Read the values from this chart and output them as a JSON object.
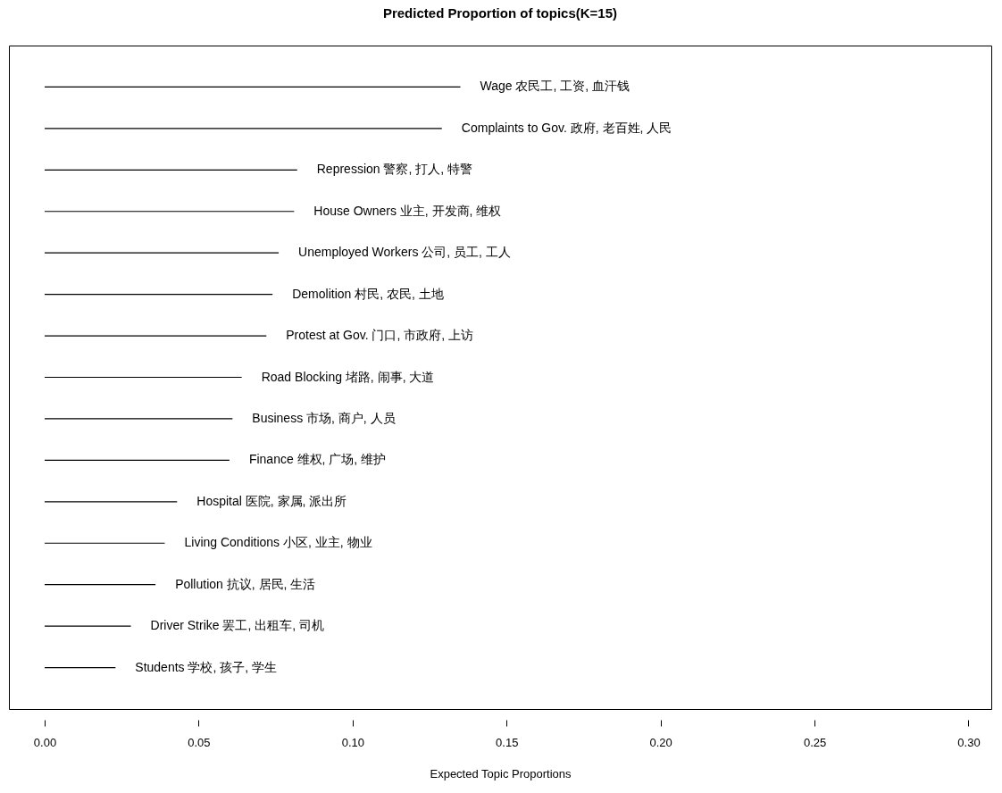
{
  "chart_data": {
    "type": "bar",
    "orientation": "horizontal",
    "title": "Predicted Proportion of topics(K=15)",
    "xlabel": "Expected Topic Proportions",
    "categories": [
      "Wage 农民工, 工资, 血汗钱",
      "Complaints to Gov. 政府, 老百姓, 人民",
      "Repression 警察, 打人, 特警",
      "House Owners 业主, 开发商, 维权",
      "Unemployed Workers 公司, 员工, 工人",
      "Demolition 村民, 农民, 土地",
      "Protest at Gov. 门口, 市政府, 上访",
      "Road Blocking 堵路, 闹事, 大道",
      "Business 市场, 商户, 人员",
      "Finance 维权, 广场, 维护",
      "Hospital 医院, 家属, 派出所",
      "Living Conditions 小区, 业主, 物业",
      "Pollution 抗议, 居民, 生活",
      "Driver Strike 罢工, 出租车, 司机",
      "Students 学校, 孩子, 学生"
    ],
    "values": [
      0.135,
      0.129,
      0.082,
      0.081,
      0.076,
      0.074,
      0.072,
      0.064,
      0.061,
      0.06,
      0.043,
      0.039,
      0.036,
      0.028,
      0.023
    ],
    "color": "#000000",
    "xlim": [
      -0.0116,
      0.3074
    ],
    "xticks": [
      {
        "value": 0,
        "label": "0.00"
      },
      {
        "value": 0.05,
        "label": "0.05"
      },
      {
        "value": 0.1,
        "label": "0.10"
      },
      {
        "value": 0.15,
        "label": "0.15"
      },
      {
        "value": 0.2,
        "label": "0.20"
      },
      {
        "value": 0.25,
        "label": "0.25"
      },
      {
        "value": 0.3,
        "label": "0.30"
      }
    ],
    "tick_labels": "x",
    "grid": false
  }
}
